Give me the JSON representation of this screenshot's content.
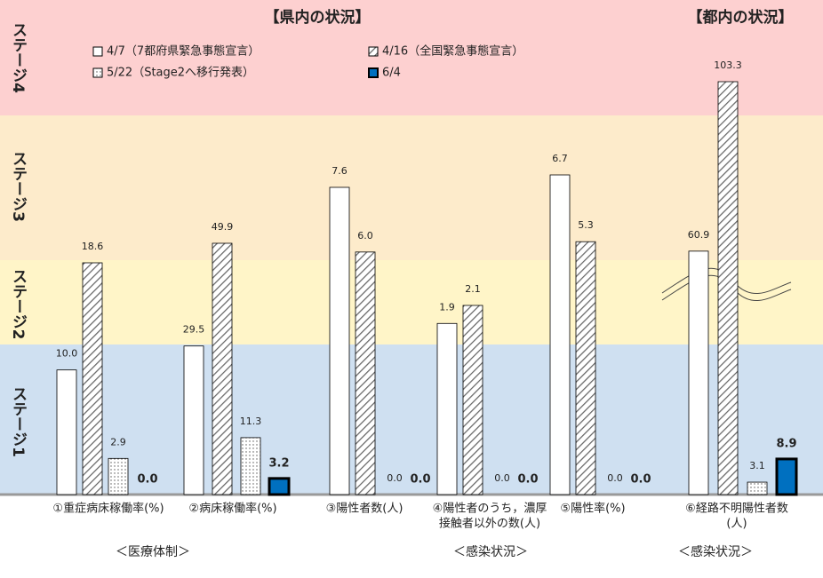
{
  "chart_data": {
    "type": "bar",
    "section_titles": [
      "【県内の状況】",
      "【都内の状況】"
    ],
    "stages": [
      "ステージ4",
      "ステージ3",
      "ステージ2",
      "ステージ1"
    ],
    "categories": [
      [
        "①重症病床稼働率(%)"
      ],
      [
        "②病床稼働率(%)"
      ],
      [
        "③陽性者数(人)"
      ],
      [
        "④陽性者のうち，濃厚",
        "接触者以外の数(人)"
      ],
      [
        "⑤陽性率(%)"
      ],
      [
        "⑥経路不明陽性者数",
        "(人)"
      ]
    ],
    "group_labels": [
      "＜医療体制＞",
      "＜感染状況＞",
      "＜感染状況＞"
    ],
    "series": [
      {
        "name": "4/7（7都府県緊急事態宣言）",
        "color": "#ffffff",
        "values": [
          10.0,
          29.5,
          7.6,
          1.9,
          6.7,
          60.9
        ],
        "value_labels": [
          "10.0",
          "29.5",
          "7.6",
          "1.9",
          "6.7",
          "60.9"
        ]
      },
      {
        "name": "4/16（全国緊急事態宣言）",
        "color": "hatch",
        "values": [
          18.6,
          49.9,
          6.0,
          2.1,
          5.3,
          103.3
        ],
        "value_labels": [
          "18.6",
          "49.9",
          "6.0",
          "2.1",
          "5.3",
          "103.3"
        ]
      },
      {
        "name": "5/22（Stage2へ移行発表）",
        "color": "dots",
        "values": [
          2.9,
          11.3,
          0.0,
          0.0,
          0.0,
          3.1
        ],
        "value_labels": [
          "2.9",
          "11.3",
          "0.0",
          "0.0",
          "0.0",
          "3.1"
        ]
      },
      {
        "name": "6/4",
        "color": "#0070c0",
        "values": [
          0.0,
          3.2,
          0.0,
          0.0,
          0.0,
          8.9
        ],
        "value_labels": [
          "0.0",
          "3.2",
          "0.0",
          "0.0",
          "0.0",
          "8.9"
        ]
      }
    ]
  }
}
